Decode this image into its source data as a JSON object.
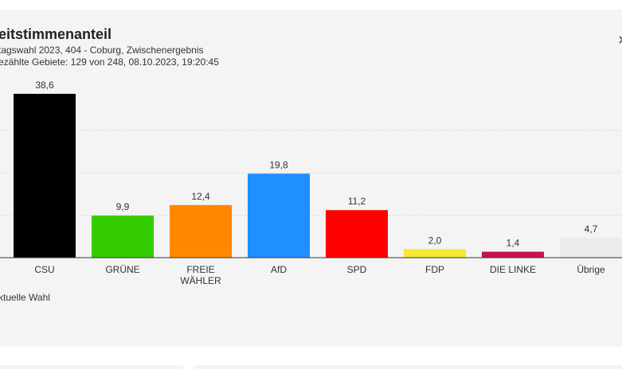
{
  "header": {
    "title": "eitstimmenanteil",
    "subtitle": "tagswahl 2023, 404 - Coburg, Zwischenergebnis",
    "status": "ezählte Gebiete: 129 von 248, 08.10.2023, 19:20:45"
  },
  "chart_data": {
    "type": "bar",
    "categories": [
      "CSU",
      "GRÜNE",
      "FREIE WÄHLER",
      "AfD",
      "SPD",
      "FDP",
      "DIE LINKE",
      "Übrige"
    ],
    "series": [
      {
        "name": "ktuelle Wahl",
        "values": [
          38.6,
          9.9,
          12.4,
          19.8,
          11.2,
          2.0,
          1.4,
          4.7
        ],
        "value_labels": [
          "38,6",
          "9,9",
          "12,4",
          "19,8",
          "11,2",
          "2,0",
          "1,4",
          "4,7"
        ],
        "colors": [
          "#000000",
          "#33cc00",
          "#ff8800",
          "#1e90ff",
          "#ff0000",
          "#f5e934",
          "#c8124e",
          "#ebebeb"
        ]
      }
    ],
    "ylim": [
      0,
      40
    ],
    "yticks": [
      0,
      10,
      20,
      30
    ],
    "grid": true
  }
}
